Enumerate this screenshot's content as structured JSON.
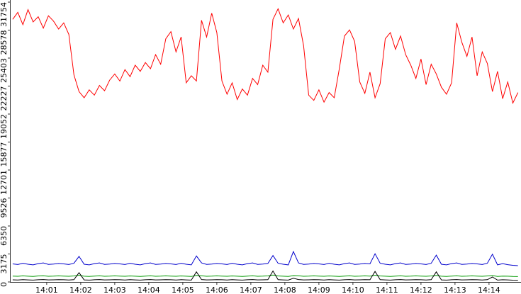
{
  "chart_data": {
    "type": "line",
    "x": [
      0,
      0.15,
      0.3,
      0.45,
      0.6,
      0.75,
      0.9,
      1.05,
      1.2,
      1.35,
      1.5,
      1.65,
      1.8,
      1.95,
      2.1,
      2.25,
      2.4,
      2.55,
      2.7,
      2.85,
      3,
      3.15,
      3.3,
      3.45,
      3.6,
      3.75,
      3.9,
      4.05,
      4.2,
      4.35,
      4.5,
      4.65,
      4.8,
      4.95,
      5.1,
      5.25,
      5.4,
      5.55,
      5.7,
      5.85,
      6,
      6.15,
      6.3,
      6.45,
      6.6,
      6.75,
      6.9,
      7.05,
      7.2,
      7.35,
      7.5,
      7.65,
      7.8,
      7.95,
      8.1,
      8.25,
      8.4,
      8.55,
      8.7,
      8.85,
      9,
      9.15,
      9.3,
      9.45,
      9.6,
      9.75,
      9.9,
      10.05,
      10.2,
      10.35,
      10.5,
      10.65,
      10.8,
      10.95,
      11.1,
      11.25,
      11.4,
      11.55,
      11.7,
      11.85,
      12,
      12.15,
      12.3,
      12.45,
      12.6,
      12.75,
      12.9,
      13.05,
      13.2,
      13.35,
      13.5,
      13.65,
      13.8,
      13.95,
      14.1,
      14.25,
      14.4,
      14.55,
      14.7,
      14.85
    ],
    "series": [
      {
        "color": "#ff0000",
        "values": [
          29800,
          30600,
          29200,
          30900,
          29500,
          30100,
          28800,
          30200,
          29600,
          28700,
          29400,
          28100,
          23500,
          21600,
          20900,
          21800,
          21200,
          22300,
          21700,
          22900,
          23600,
          22800,
          24100,
          23300,
          24600,
          23900,
          24900,
          24200,
          25800,
          24700,
          27600,
          28400,
          26100,
          27800,
          22600,
          23400,
          22800,
          29700,
          27800,
          30500,
          28300,
          22800,
          21300,
          22600,
          20700,
          21900,
          21200,
          23100,
          22400,
          24600,
          23800,
          29800,
          31000,
          29400,
          30300,
          28700,
          29900,
          26800,
          21200,
          20600,
          21800,
          20400,
          21500,
          20900,
          24200,
          27900,
          28600,
          27300,
          22700,
          21400,
          23800,
          20900,
          22500,
          27600,
          28300,
          26400,
          27900,
          25800,
          24600,
          23100,
          25300,
          22400,
          24700,
          23600,
          22100,
          21300,
          22600,
          29400,
          27200,
          25600,
          27800,
          23400,
          26100,
          24800,
          21600,
          23900,
          20800,
          22700,
          20300,
          21500
        ]
      },
      {
        "color": "#0000cc",
        "values": [
          2050,
          1980,
          2120,
          2010,
          1940,
          2080,
          2160,
          1990,
          2030,
          2100,
          2050,
          1980,
          2120,
          2900,
          2010,
          1940,
          2080,
          2160,
          1990,
          2030,
          2100,
          2050,
          1980,
          2120,
          2010,
          1940,
          2080,
          2160,
          1990,
          2030,
          2100,
          2050,
          1980,
          2120,
          2010,
          1940,
          2950,
          2160,
          1990,
          2030,
          2100,
          2050,
          1980,
          2120,
          2010,
          1940,
          2080,
          2160,
          1990,
          2030,
          2100,
          3000,
          2120,
          2010,
          1940,
          3450,
          2160,
          1990,
          2030,
          2100,
          2050,
          1980,
          2120,
          2010,
          1940,
          2080,
          2160,
          1990,
          2030,
          2100,
          2050,
          3200,
          2120,
          2010,
          1940,
          2080,
          2160,
          1990,
          2030,
          2100,
          2050,
          1980,
          2120,
          3050,
          2010,
          1940,
          2080,
          2160,
          1990,
          2030,
          2100,
          2050,
          1980,
          2120,
          3150,
          1940,
          2080,
          1960,
          1890,
          1850
        ]
      },
      {
        "color": "#009900",
        "values": [
          660,
          640,
          690,
          650,
          620,
          680,
          700,
          640,
          660,
          690,
          670,
          640,
          680,
          760,
          650,
          630,
          670,
          700,
          640,
          660,
          690,
          670,
          640,
          680,
          650,
          630,
          670,
          700,
          640,
          660,
          690,
          670,
          640,
          680,
          650,
          630,
          740,
          700,
          640,
          660,
          690,
          670,
          640,
          680,
          650,
          630,
          670,
          700,
          640,
          660,
          690,
          780,
          680,
          650,
          630,
          720,
          700,
          640,
          660,
          690,
          670,
          640,
          680,
          650,
          630,
          670,
          700,
          640,
          660,
          690,
          670,
          760,
          680,
          650,
          630,
          670,
          700,
          640,
          660,
          690,
          670,
          640,
          680,
          750,
          650,
          630,
          670,
          700,
          640,
          660,
          690,
          670,
          640,
          680,
          730,
          630,
          670,
          650,
          620,
          610
        ]
      },
      {
        "color": "#000000",
        "values": [
          240,
          220,
          260,
          230,
          210,
          250,
          270,
          230,
          240,
          260,
          250,
          220,
          260,
          1050,
          230,
          210,
          250,
          270,
          230,
          240,
          260,
          250,
          220,
          260,
          230,
          210,
          250,
          270,
          230,
          240,
          260,
          250,
          220,
          260,
          230,
          210,
          1150,
          270,
          230,
          240,
          260,
          250,
          220,
          260,
          230,
          210,
          250,
          270,
          230,
          240,
          260,
          1250,
          260,
          230,
          210,
          420,
          270,
          230,
          240,
          260,
          250,
          220,
          260,
          230,
          210,
          250,
          270,
          230,
          240,
          260,
          250,
          1200,
          260,
          230,
          210,
          250,
          270,
          230,
          240,
          260,
          250,
          220,
          260,
          1150,
          230,
          210,
          250,
          270,
          230,
          240,
          260,
          250,
          220,
          260,
          560,
          210,
          250,
          230,
          200,
          190
        ]
      }
    ],
    "xlim": [
      -0.06,
      14.94
    ],
    "xticks": [
      {
        "value": 1,
        "label": "14:01"
      },
      {
        "value": 2,
        "label": "14:02"
      },
      {
        "value": 3,
        "label": "14:03"
      },
      {
        "value": 4,
        "label": "14:04"
      },
      {
        "value": 5,
        "label": "14:05"
      },
      {
        "value": 6,
        "label": "14:06"
      },
      {
        "value": 7,
        "label": "14:07"
      },
      {
        "value": 8,
        "label": "14:08"
      },
      {
        "value": 9,
        "label": "14:09"
      },
      {
        "value": 10,
        "label": "14:10"
      },
      {
        "value": 11,
        "label": "14:11"
      },
      {
        "value": 12,
        "label": "14:12"
      },
      {
        "value": 13,
        "label": "14:13"
      },
      {
        "value": 14,
        "label": "14:14"
      }
    ],
    "ylim": [
      0,
      31754
    ],
    "yticks": [
      0,
      3175,
      6350,
      9526,
      12701,
      15877,
      19052,
      22227,
      25403,
      28578,
      31754
    ]
  }
}
